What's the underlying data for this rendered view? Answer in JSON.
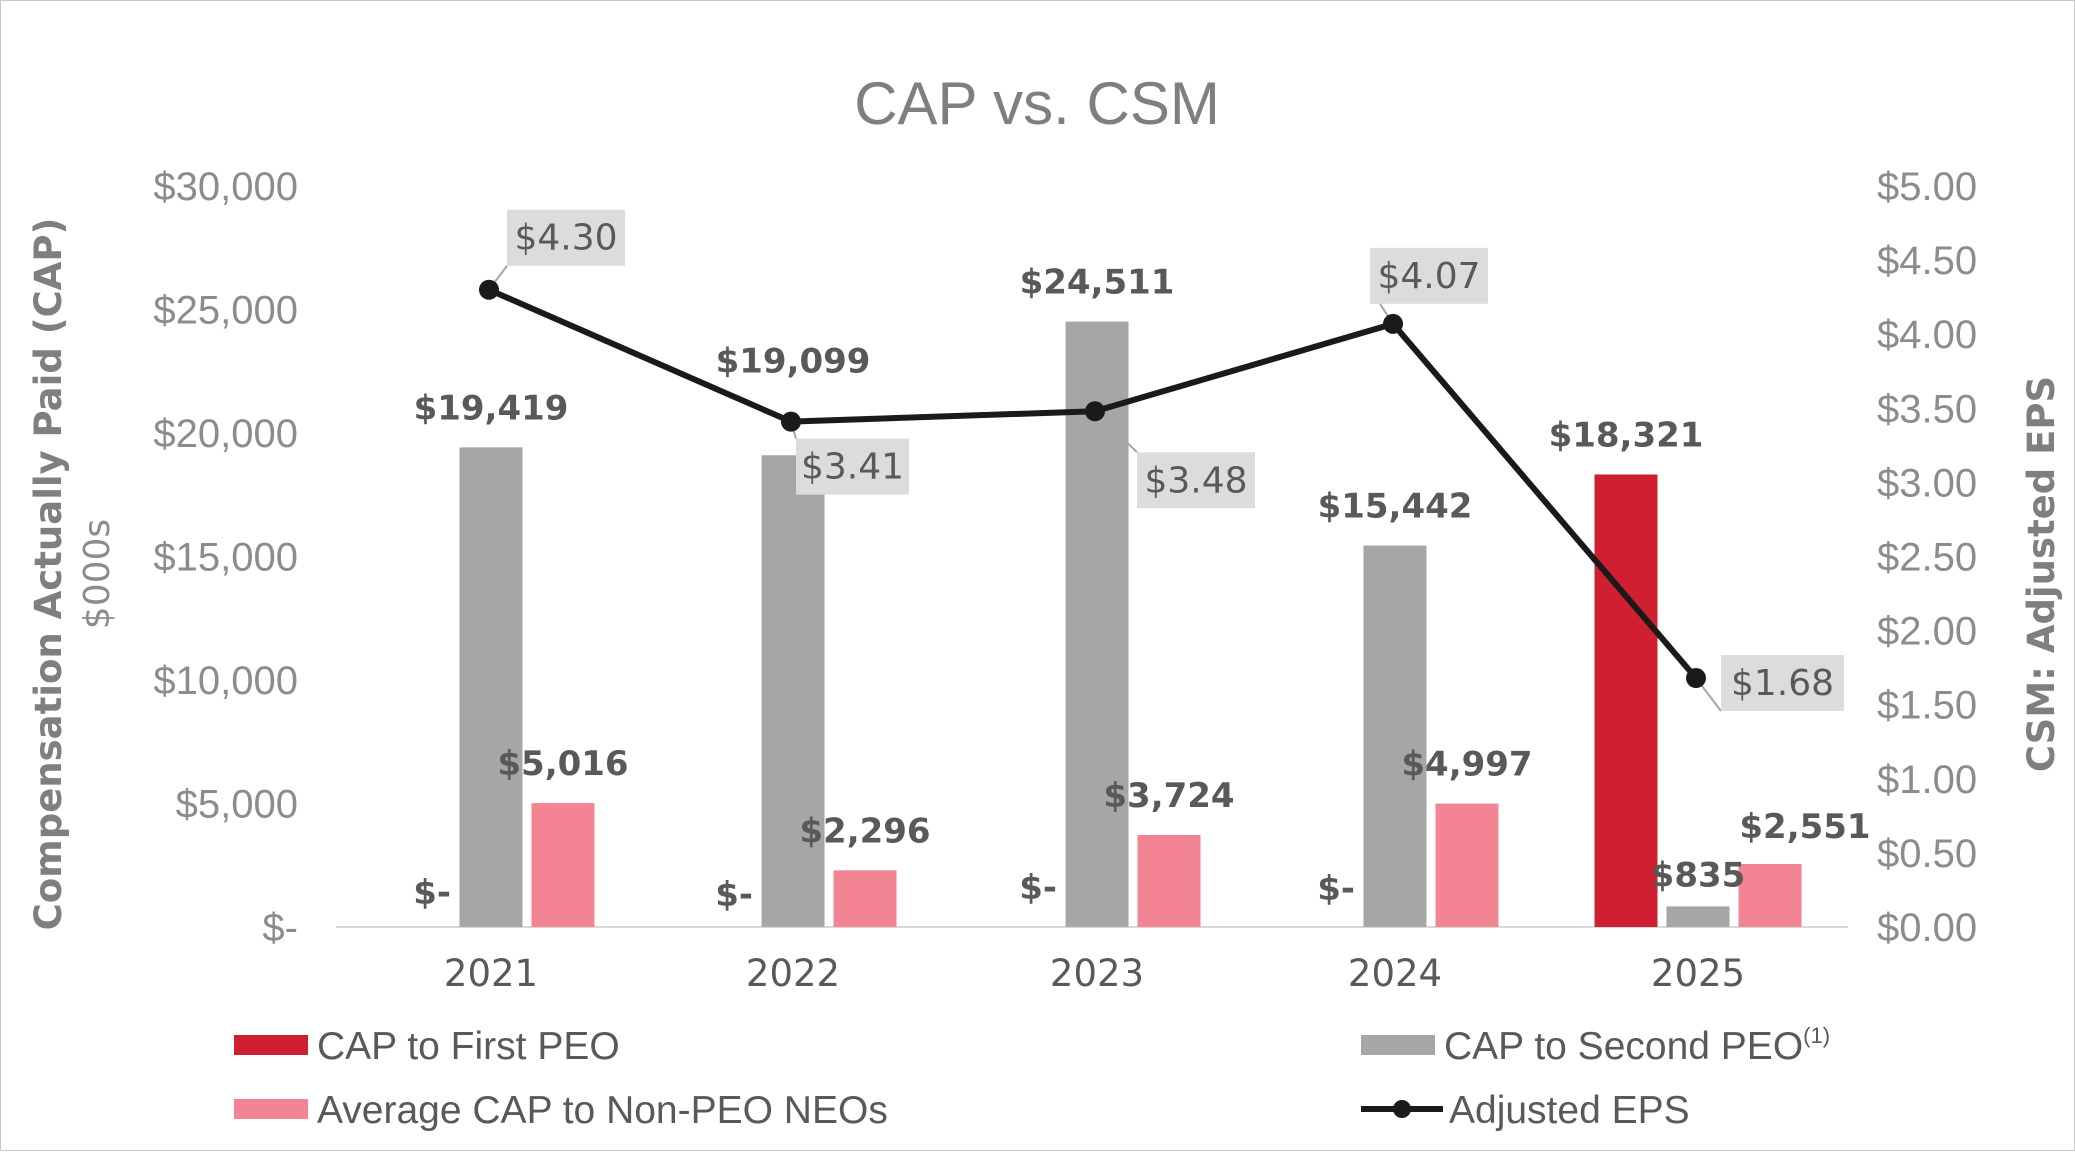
{
  "chart_data": {
    "type": "bar",
    "title": "CAP vs. CSM",
    "ylabel": "Compensation Actually Paid (CAP)",
    "ylabel_sub": "$000s",
    "y2label": "CSM: Adjusted EPS",
    "categories": [
      "2021",
      "2022",
      "2023",
      "2024",
      "2025"
    ],
    "ylim": [
      0,
      30000
    ],
    "y_ticks": [
      {
        "value": 0,
        "label": "$-"
      },
      {
        "value": 5000,
        "label": "$5,000"
      },
      {
        "value": 10000,
        "label": "$10,000"
      },
      {
        "value": 15000,
        "label": "$15,000"
      },
      {
        "value": 20000,
        "label": "$20,000"
      },
      {
        "value": 25000,
        "label": "$25,000"
      },
      {
        "value": 30000,
        "label": "$30,000"
      }
    ],
    "y2lim": [
      0,
      5
    ],
    "y2_ticks": [
      {
        "value": 0,
        "label": "$0.00"
      },
      {
        "value": 0.5,
        "label": "$0.50"
      },
      {
        "value": 1,
        "label": "$1.00"
      },
      {
        "value": 1.5,
        "label": "$1.50"
      },
      {
        "value": 2,
        "label": "$2.00"
      },
      {
        "value": 2.5,
        "label": "$2.50"
      },
      {
        "value": 3,
        "label": "$3.00"
      },
      {
        "value": 3.5,
        "label": "$3.50"
      },
      {
        "value": 4,
        "label": "$4.00"
      },
      {
        "value": 4.5,
        "label": "$4.50"
      },
      {
        "value": 5,
        "label": "$5.00"
      }
    ],
    "series": [
      {
        "key": "first_peo",
        "name": "CAP to First PEO",
        "type": "bar",
        "color": "#d01f30",
        "values": [
          0,
          0,
          0,
          0,
          18321
        ],
        "labels": [
          "$-",
          "$-",
          "$-",
          "$-",
          "$18,321"
        ]
      },
      {
        "key": "second_peo",
        "name": "CAP to Second PEO",
        "name_superscript": "(1)",
        "type": "bar",
        "color": "#a6a6a6",
        "values": [
          19419,
          19099,
          24511,
          15442,
          835
        ],
        "labels": [
          "$19,419",
          "$19,099",
          "$24,511",
          "$15,442",
          "$835"
        ]
      },
      {
        "key": "non_peo",
        "name": "Average CAP to Non-PEO NEOs",
        "type": "bar",
        "color": "#f28494",
        "values": [
          5016,
          2296,
          3724,
          4997,
          2551
        ],
        "labels": [
          "$5,016",
          "$2,296",
          "$3,724",
          "$4,997",
          "$2,551"
        ]
      },
      {
        "key": "eps",
        "name": "Adjusted EPS",
        "type": "line",
        "axis": "right",
        "color": "#1a1a1a",
        "values": [
          4.3,
          3.41,
          3.48,
          4.07,
          1.68
        ],
        "labels": [
          "$4.30",
          "$3.41",
          "$3.48",
          "$4.07",
          "$1.68"
        ]
      }
    ],
    "legend": "bottom"
  }
}
